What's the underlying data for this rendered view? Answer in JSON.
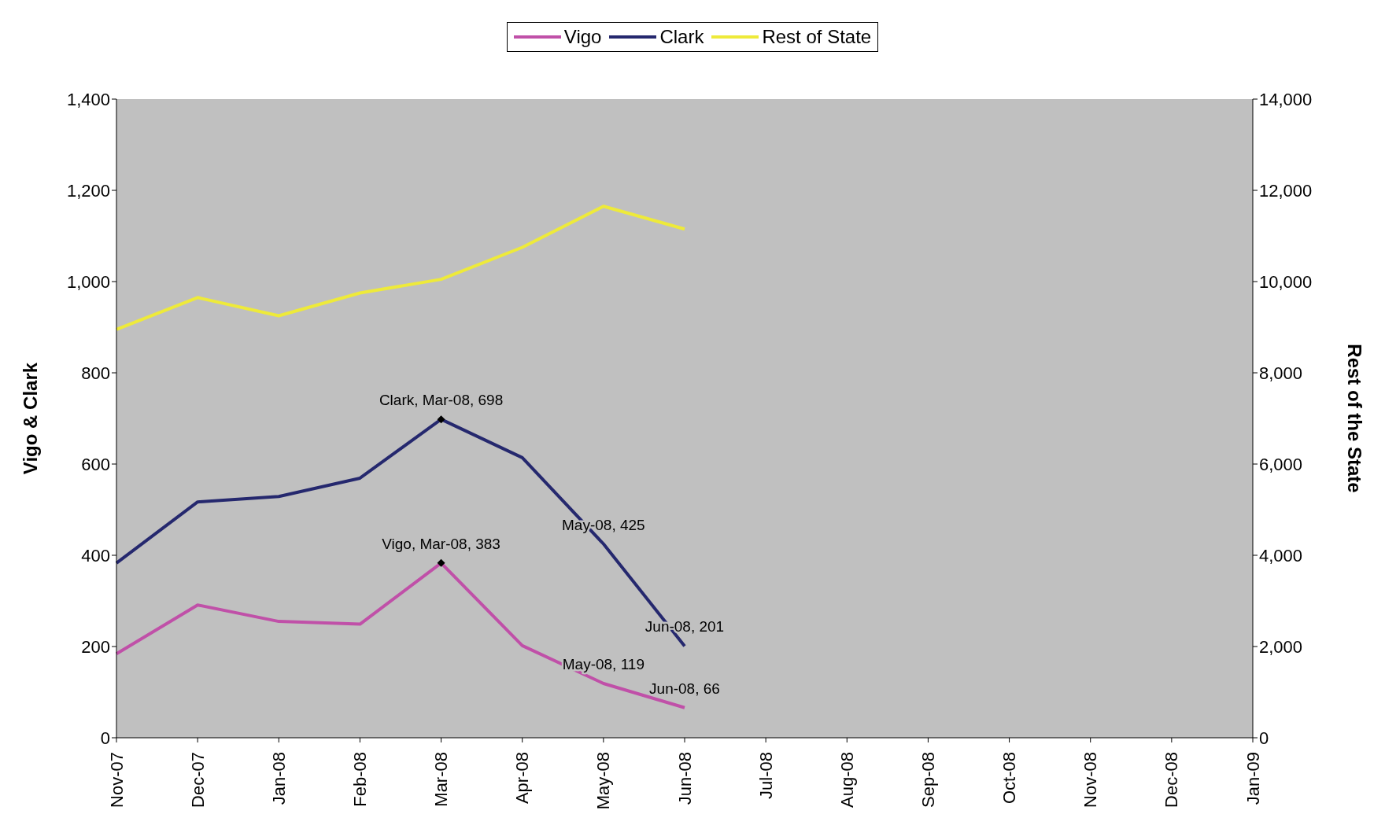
{
  "chart_data": {
    "type": "line",
    "ylabel": "Vigo & Clark",
    "y2label": "Rest of the State",
    "categories": [
      "Nov-07",
      "Dec-07",
      "Jan-08",
      "Feb-08",
      "Mar-08",
      "Apr-08",
      "May-08",
      "Jun-08",
      "Jul-08",
      "Aug-08",
      "Sep-08",
      "Oct-08",
      "Nov-08",
      "Dec-08",
      "Jan-09"
    ],
    "series": [
      {
        "name": "Vigo",
        "color": "#c050a8",
        "values": [
          184,
          291,
          255,
          249,
          383,
          202,
          119,
          66,
          null,
          null,
          null,
          null,
          null,
          null,
          null
        ],
        "value_labels": [
          null,
          null,
          null,
          null,
          "Vigo, Mar-08, 383",
          null,
          "May-08, 119",
          "Jun-08, 66",
          null,
          null,
          null,
          null,
          null,
          null,
          null
        ]
      },
      {
        "name": "Clark",
        "color": "#25286e",
        "values": [
          383,
          517,
          529,
          569,
          698,
          614,
          425,
          201,
          null,
          null,
          null,
          null,
          null,
          null,
          null
        ],
        "value_labels": [
          null,
          null,
          null,
          null,
          "Clark, Mar-08, 698",
          null,
          "May-08, 425",
          "Jun-08, 201",
          null,
          null,
          null,
          null,
          null,
          null,
          null
        ]
      },
      {
        "name": "Rest of State",
        "color": "#eeea3a",
        "axis": "y2",
        "values": [
          8950,
          9650,
          9250,
          9750,
          10050,
          10750,
          11650,
          11150,
          null,
          null,
          null,
          null,
          null,
          null,
          null
        ]
      },
      {
        "type": "scatter",
        "color": "#000000",
        "marker": "diamond",
        "x": [
          "Mar-08",
          "Mar-08"
        ],
        "values": [
          698,
          383
        ]
      }
    ],
    "ylim": [
      0,
      1400
    ],
    "yticks": [
      0,
      200,
      400,
      600,
      800,
      {
        "value": 1000,
        "label": "1,000"
      },
      {
        "value": 1200,
        "label": "1,200"
      },
      {
        "value": 1400,
        "label": "1,400"
      }
    ],
    "y2lim": [
      0,
      14000
    ],
    "y2ticks": [
      0,
      {
        "value": 2000,
        "label": "2,000"
      },
      {
        "value": 4000,
        "label": "4,000"
      },
      {
        "value": 6000,
        "label": "6,000"
      },
      {
        "value": 8000,
        "label": "8,000"
      },
      {
        "value": 10000,
        "label": "10,000"
      },
      {
        "value": 12000,
        "label": "12,000"
      },
      {
        "value": 14000,
        "label": "14,000"
      }
    ],
    "grid": false,
    "legend": "top",
    "marker": "none",
    "line_style": "solid"
  }
}
